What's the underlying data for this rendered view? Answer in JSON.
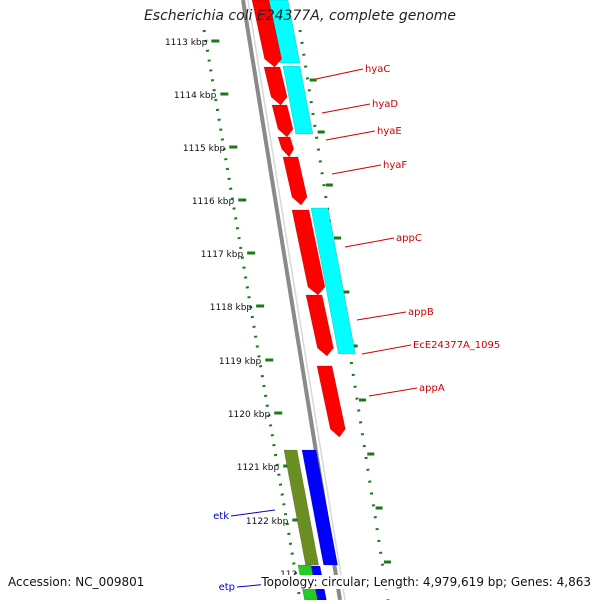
{
  "title": "Escherichia coli E24377A, complete genome",
  "accession": "Accession: NC_009801",
  "summary": "Topology: circular; Length: 4,979,619 bp; Genes: 4,863",
  "colors": {
    "backbone": "#8a8a8a",
    "tick": "#1a7a1a",
    "gene_red": "#ff0000",
    "gene_cyan": "#00ffff",
    "gene_blue": "#0000ff",
    "gene_olive": "#6b8e23",
    "gene_green": "#22cc22",
    "label_red": "#cc0000",
    "label_blue": "#0000cc"
  },
  "scale_labels": [
    "1113 kbp",
    "1114 kbp",
    "1115 kbp",
    "1116 kbp",
    "1117 kbp",
    "1118 kbp",
    "1119 kbp",
    "1120 kbp",
    "1121 kbp",
    "1122 kbp",
    "112"
  ],
  "genes": [
    {
      "name": "hyaC",
      "color": "red"
    },
    {
      "name": "hyaD",
      "color": "red"
    },
    {
      "name": "hyaE",
      "color": "red"
    },
    {
      "name": "hyaF",
      "color": "red"
    },
    {
      "name": "appC",
      "color": "red"
    },
    {
      "name": "appB",
      "color": "red"
    },
    {
      "name": "EcE24377A_1095",
      "color": "red"
    },
    {
      "name": "appA",
      "color": "red"
    },
    {
      "name": "etk",
      "color": "blue"
    },
    {
      "name": "etp",
      "color": "blue"
    }
  ]
}
